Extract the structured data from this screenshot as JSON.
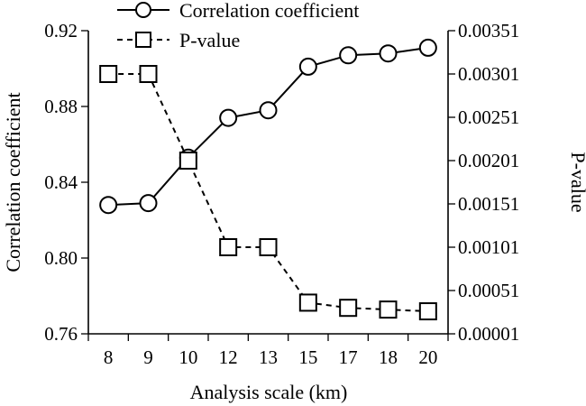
{
  "chart_data": {
    "type": "line",
    "xlabel": "Analysis scale (km)",
    "ylabel": "Correlation coefficient",
    "y2label": "P-value",
    "categories": [
      "8",
      "9",
      "10",
      "12",
      "13",
      "15",
      "17",
      "18",
      "20"
    ],
    "ylim": [
      0.76,
      0.92
    ],
    "yticks": [
      "0.76",
      "0.80",
      "0.84",
      "0.88",
      "0.92"
    ],
    "y2lim": [
      1e-05,
      0.00351
    ],
    "y2ticks": [
      "0.00001",
      "0.00051",
      "0.00101",
      "0.00151",
      "0.00201",
      "0.00251",
      "0.00301",
      "0.00351"
    ],
    "legend_position": "top-center",
    "series": [
      {
        "name": "Correlation coefficient",
        "axis": "left",
        "marker": "circle",
        "line_style": "solid",
        "values": [
          0.828,
          0.829,
          0.853,
          0.874,
          0.878,
          0.901,
          0.907,
          0.908,
          0.911
        ]
      },
      {
        "name": "P-value",
        "axis": "right",
        "marker": "square",
        "line_style": "dashed",
        "values": [
          0.00301,
          0.00301,
          0.00201,
          0.00101,
          0.00101,
          0.00037,
          0.00031,
          0.00029,
          0.00027
        ]
      }
    ],
    "colors": {
      "line": "#000000",
      "marker_fill": "#ffffff"
    }
  }
}
